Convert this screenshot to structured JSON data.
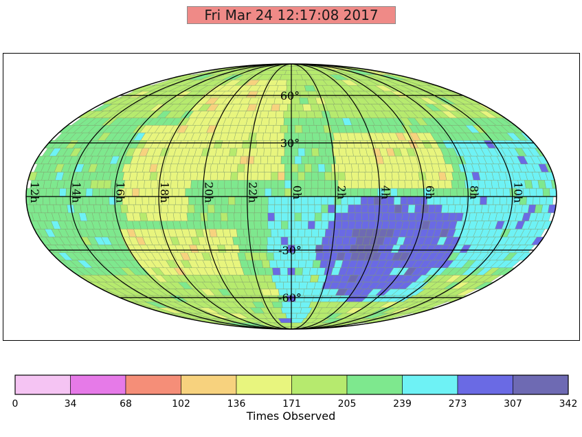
{
  "title": "Fri Mar 24 12:17:08 2017",
  "colorbar": {
    "label": "Times Observed",
    "ticks": [
      "0",
      "34",
      "68",
      "102",
      "136",
      "171",
      "205",
      "239",
      "273",
      "307",
      "342"
    ],
    "colors": [
      "#f5c4f3",
      "#e67ae8",
      "#f58e78",
      "#f7d27e",
      "#e8f57e",
      "#b6ea6e",
      "#7ee88e",
      "#6ef2f5",
      "#6a6ae4",
      "#6e6ab3"
    ]
  },
  "map": {
    "projection": "mollweide",
    "ra_labels": [
      {
        "text": "12h",
        "ra": 12
      },
      {
        "text": "10h",
        "ra": 10
      },
      {
        "text": "8h",
        "ra": 8
      },
      {
        "text": "6h",
        "ra": 6
      },
      {
        "text": "4h",
        "ra": 4
      },
      {
        "text": "2h",
        "ra": 2
      },
      {
        "text": "0h",
        "ra": 0
      },
      {
        "text": "22h",
        "ra": 22
      },
      {
        "text": "20h",
        "ra": 20
      },
      {
        "text": "18h",
        "ra": 18
      },
      {
        "text": "16h",
        "ra": 16
      },
      {
        "text": "14h",
        "ra": 14
      }
    ],
    "dec_labels": [
      {
        "text": "60°",
        "dec": 60
      },
      {
        "text": "30°",
        "dec": 30
      },
      {
        "text": "-30°",
        "dec": -30
      },
      {
        "text": "-60°",
        "dec": -60
      }
    ]
  }
}
